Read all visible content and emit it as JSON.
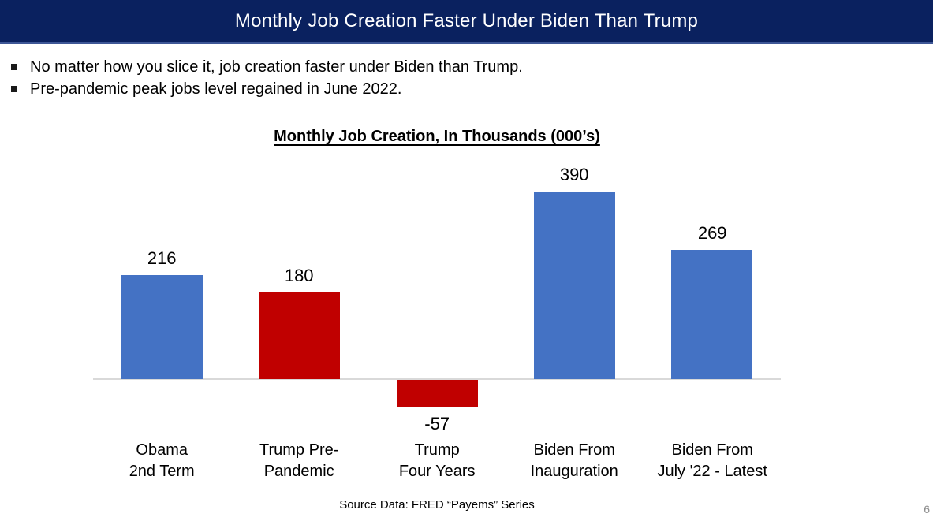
{
  "slide": {
    "header_title": "Monthly Job Creation Faster Under Biden Than Trump",
    "bullets": [
      "No matter how you slice it, job creation faster under Biden than Trump.",
      "Pre-pandemic peak jobs level regained in June 2022."
    ],
    "source": "Source Data: FRED “Payems” Series",
    "page_number": "6"
  },
  "chart_data": {
    "type": "bar",
    "title": "Monthly Job Creation, In Thousands (000’s)",
    "categories": [
      "Obama 2nd Term",
      "Trump Pre-Pandemic",
      "Trump Four Years",
      "Biden From Inauguration",
      "Biden From July '22 - Latest"
    ],
    "category_lines": [
      [
        "Obama",
        "2nd Term"
      ],
      [
        "Trump Pre-",
        "Pandemic"
      ],
      [
        "Trump",
        "Four Years"
      ],
      [
        "Biden From",
        "Inauguration"
      ],
      [
        "Biden From",
        "July '22 - Latest"
      ]
    ],
    "values": [
      216,
      180,
      -57,
      390,
      269
    ],
    "data_labels": [
      "216",
      "180",
      "-57",
      "390",
      "269"
    ],
    "bar_colors": [
      "#4472C4",
      "#C00000",
      "#C00000",
      "#4472C4",
      "#4472C4"
    ],
    "xlabel": "",
    "ylabel": "",
    "ylim": [
      -100,
      460
    ],
    "gridlines": false,
    "legend": "none",
    "axis_line_color": "#D9D9D9"
  },
  "colors": {
    "header_bg": "#0A215F",
    "header_accent": "#3E5796",
    "bar_blue": "#4472C4",
    "bar_red": "#C00000",
    "axis_gray": "#D9D9D9",
    "page_number_gray": "#8C8C8C"
  }
}
